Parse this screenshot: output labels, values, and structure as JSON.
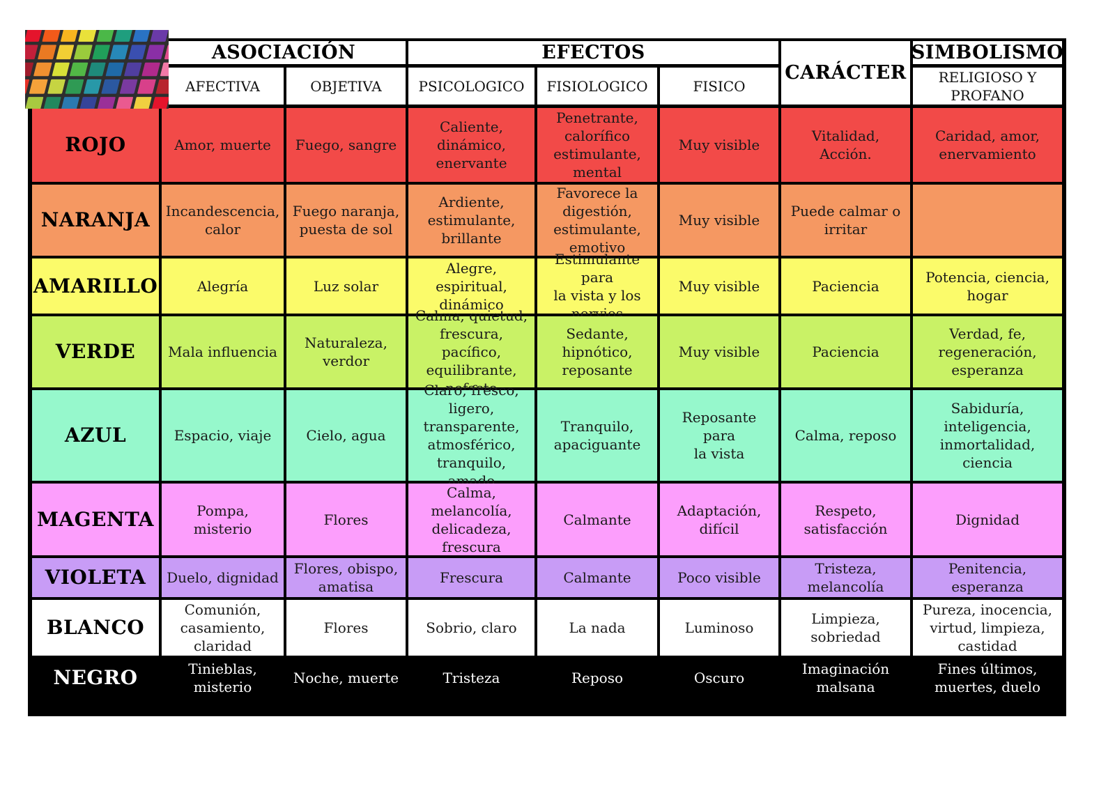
{
  "header": {
    "groups": [
      "ASOCIACIÓN",
      "EFECTOS",
      "CARÁCTER",
      "SIMBOLISMO"
    ],
    "sub": [
      "AFECTIVA",
      "OBJETIVA",
      "PSICOLOGICO",
      "FISIOLOGICO",
      "FISICO",
      "RELIGIOSO Y\nPROFANO"
    ]
  },
  "colors": {
    "rojo": "#f24a48",
    "naranja": "#f59862",
    "amarillo": "#fbfb6a",
    "verde": "#c9f266",
    "azul": "#96f8cc",
    "magenta": "#fc9efc",
    "violeta": "#c89cf6",
    "blanco": "#ffffff",
    "negro": "#000000"
  },
  "rows": [
    {
      "label": "ROJO",
      "cells": [
        "Amor, muerte",
        "Fuego, sangre",
        "Caliente,\ndinámico,\nenervante",
        "Penetrante,\ncalorífico\nestimulante,\nmental",
        "Muy visible",
        "Vitalidad,\nAcción.",
        "Caridad, amor,\nenervamiento"
      ]
    },
    {
      "label": "NARANJA",
      "cells": [
        "Incandescencia,\ncalor",
        "Fuego naranja,\npuesta de sol",
        "Ardiente,\nestimulante,\nbrillante",
        "Favorece la\ndigestión,\nestimulante,\nemotivo",
        "Muy visible",
        "Puede  calmar o\nirritar",
        ""
      ]
    },
    {
      "label": "AMARILLO",
      "cells": [
        "Alegría",
        "Luz solar",
        "Alegre, espiritual,\ndinámico",
        "Estimulante para\nla vista y los\nnervios",
        "Muy visible",
        "Paciencia",
        "Potencia, ciencia,\nhogar"
      ]
    },
    {
      "label": "VERDE",
      "cells": [
        "Mala influencia",
        "Naturaleza,\nverdor",
        "Calma, quietud,\nfrescura, pacífico,\nequilibrante,\nnefasto",
        "Sedante,\nhipnótico,\nreposante",
        "Muy visible",
        "Paciencia",
        "Verdad, fe,\nregeneración,\nesperanza"
      ]
    },
    {
      "label": "AZUL",
      "cells": [
        "Espacio, viaje",
        "Cielo, agua",
        "Claro, fresco,\nligero,\ntransparente,\natmosférico,\ntranquilo, amado",
        "Tranquilo,\napaciguante",
        "Reposante para\nla vista",
        "Calma, reposo",
        "Sabiduría,\ninteligencia,\ninmortalidad, ciencia"
      ]
    },
    {
      "label": "MAGENTA",
      "cells": [
        "Pompa, misterio",
        "Flores",
        "Calma,\nmelancolía,\ndelicadeza,\nfrescura",
        "Calmante",
        "Adaptación,\ndifícil",
        "Respeto,\nsatisfacción",
        "Dignidad"
      ]
    },
    {
      "label": "VIOLETA",
      "cells": [
        "Duelo, dignidad",
        "Flores, obispo,\namatisa",
        "Frescura",
        "Calmante",
        "Poco visible",
        "Tristeza,\nmelancolía",
        "Penitencia, esperanza"
      ]
    },
    {
      "label": "BLANCO",
      "cells": [
        "Comunión,\ncasamiento,\nclaridad",
        "Flores",
        "Sobrio, claro",
        "La nada",
        "Luminoso",
        "Limpieza,\nsobriedad",
        "Pureza, inocencia,\nvirtud, limpieza,\ncastidad"
      ]
    },
    {
      "label": "NEGRO",
      "cells": [
        "Tinieblas,\nmisterio",
        "Noche, muerte",
        "Tristeza",
        "Reposo",
        "Oscuro",
        "Imaginación\nmalsana",
        "Fines últimos,\nmuertes, duelo"
      ]
    }
  ]
}
